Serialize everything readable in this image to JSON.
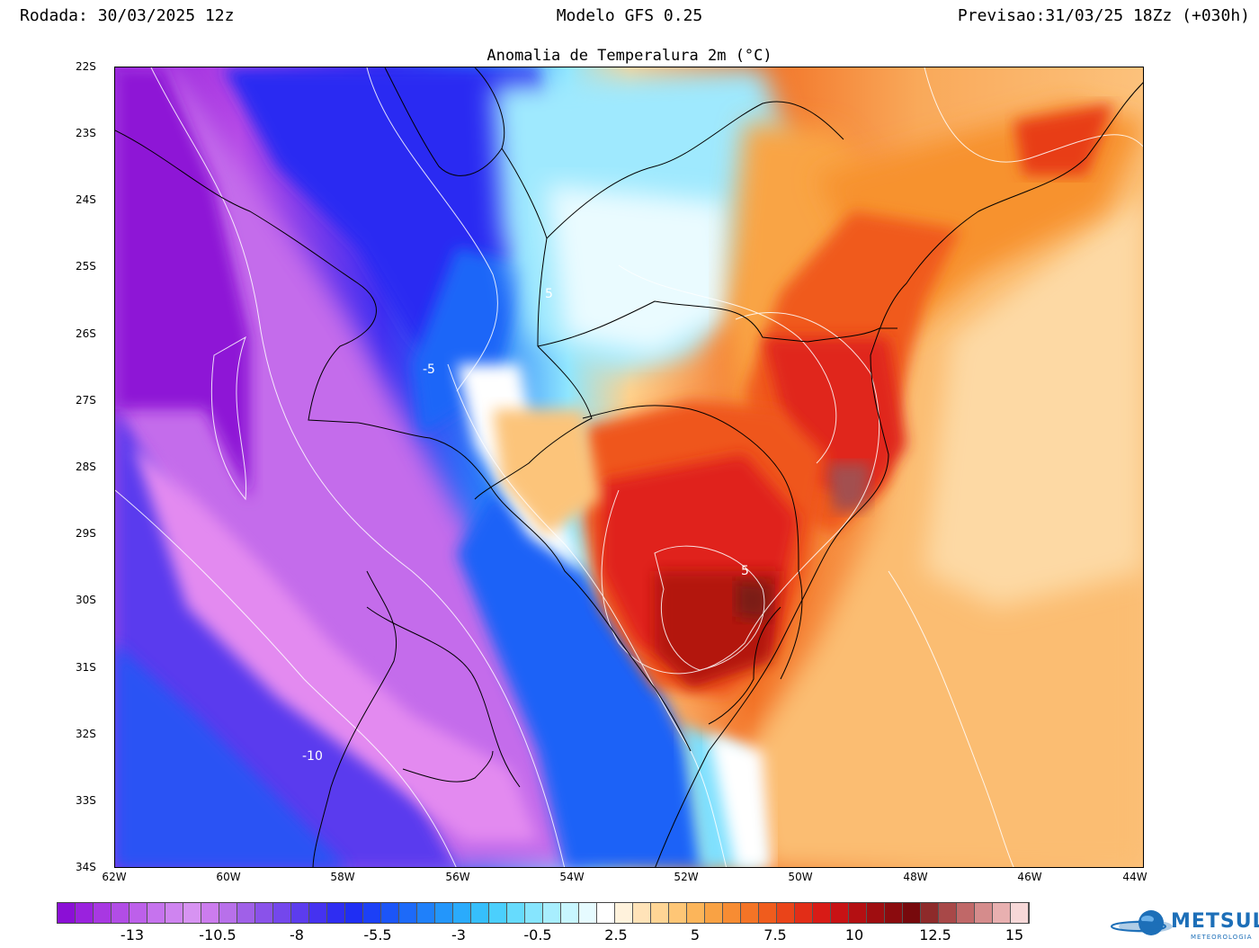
{
  "header": {
    "run": "Rodada: 30/03/2025 12z",
    "model": "Modelo GFS 0.25",
    "forecast": "Previsao:31/03/25 18Zz (+030h)"
  },
  "map": {
    "title": "Anomalia de Temperalura 2m (°C)",
    "lat_labels": [
      "22S",
      "23S",
      "24S",
      "25S",
      "26S",
      "27S",
      "28S",
      "29S",
      "30S",
      "31S",
      "32S",
      "33S",
      "34S"
    ],
    "lon_labels": [
      "62W",
      "60W",
      "58W",
      "56W",
      "54W",
      "52W",
      "50W",
      "48W",
      "46W",
      "44W"
    ],
    "contour_labels": [
      "5",
      "-5",
      "5",
      "-10"
    ]
  },
  "colorbar": {
    "labels": [
      "-13",
      "-10.5",
      "-8",
      "-5.5",
      "-3",
      "-0.5",
      "2.5",
      "5",
      "7.5",
      "10",
      "12.5",
      "15"
    ],
    "colors": [
      "#8b0fd6",
      "#9a22de",
      "#a838e2",
      "#b24de6",
      "#bd60ea",
      "#c673ee",
      "#cf84f0",
      "#d793f2",
      "#cc7cee",
      "#b870ea",
      "#a060e8",
      "#8a52ea",
      "#7447ec",
      "#5c3cee",
      "#4532f0",
      "#2f2df2",
      "#1f2ef4",
      "#1c40f6",
      "#1c55f8",
      "#1d6af9",
      "#1f80fa",
      "#2396fb",
      "#2aabfc",
      "#36bffc",
      "#4bcffd",
      "#66dbfd",
      "#86e5fe",
      "#a8eefe",
      "#c8f6ff",
      "#e6fbff",
      "#ffffff",
      "#fff2dc",
      "#ffe3b8",
      "#ffd595",
      "#fec676",
      "#fcb55a",
      "#f9a244",
      "#f78c33",
      "#f47426",
      "#f05c1d",
      "#ea4419",
      "#e22d17",
      "#d81b16",
      "#c81214",
      "#b40f12",
      "#9f0d10",
      "#8b0b0e",
      "#77090c",
      "#8e2a2a",
      "#a84848",
      "#c06868",
      "#d58c8c",
      "#e8b0b0",
      "#f7d8d8"
    ]
  },
  "logo": {
    "name": "METSUL",
    "tagline": "METEOROLOGIA"
  }
}
